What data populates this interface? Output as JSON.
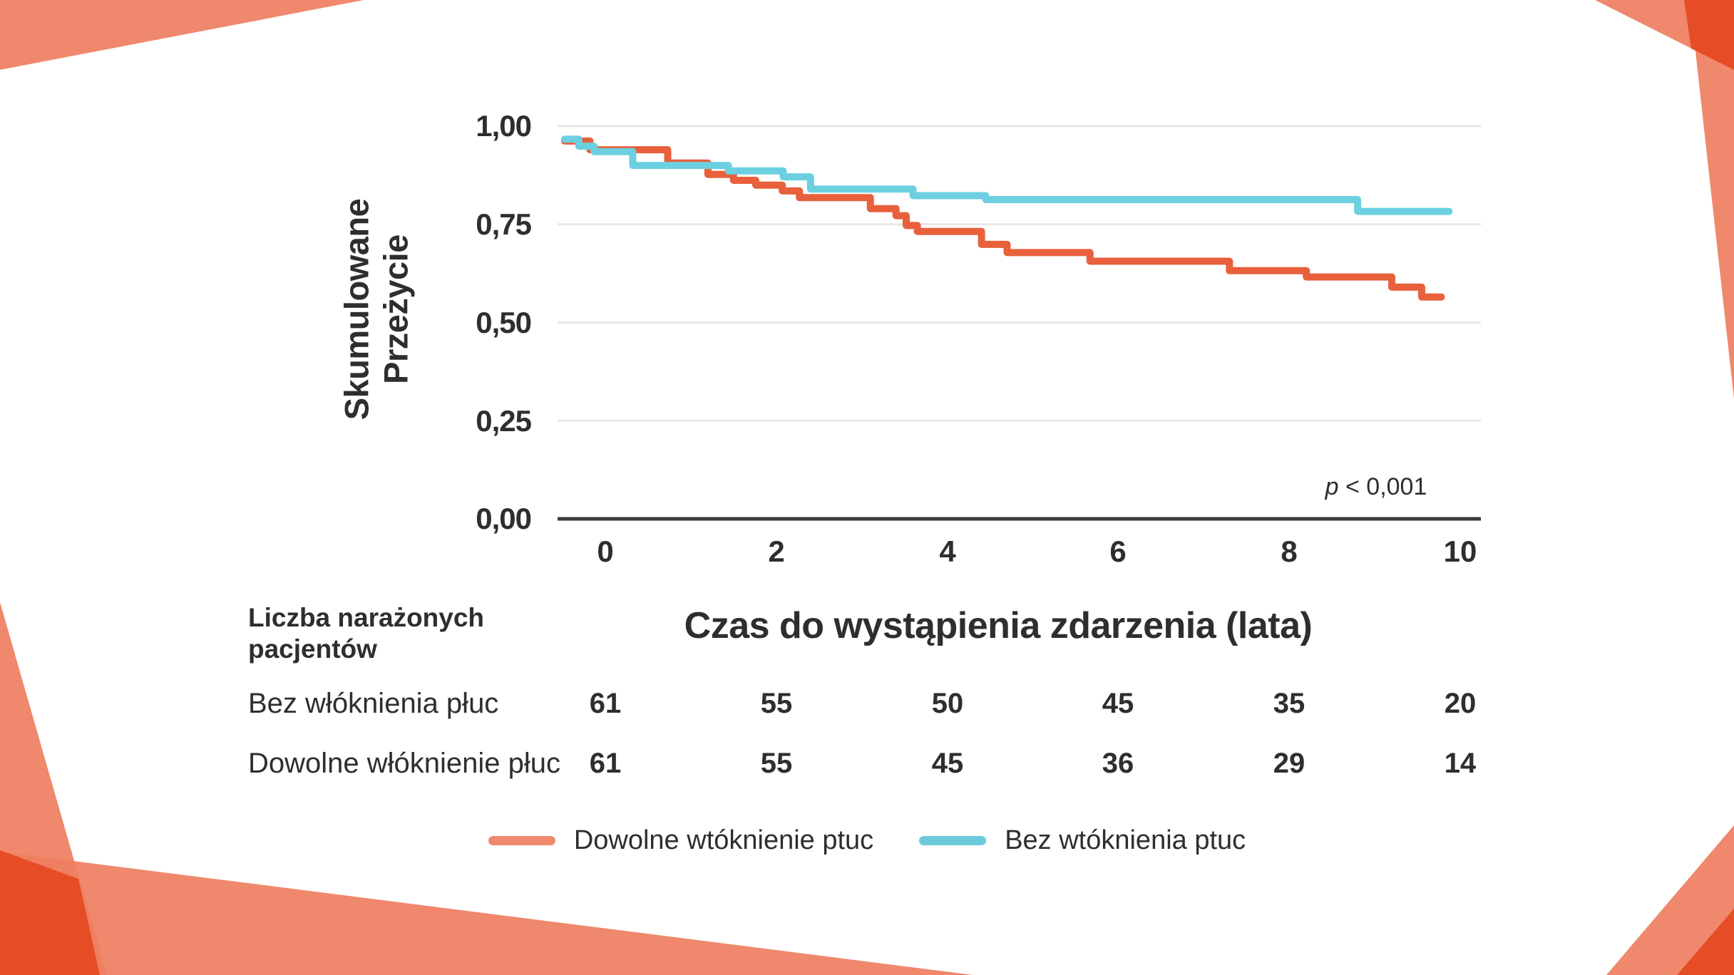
{
  "page": {
    "background": "#FFFFFF"
  },
  "chart_data": {
    "type": "line",
    "variant": "kaplan-meier-step",
    "title": "",
    "xlabel": "Czas do wystąpienia zdarzenia (lata)",
    "ylabel": "Skumulowane Przeżycie",
    "ylabel_lines": [
      "Skumulowane",
      "Przeżycie"
    ],
    "x_ticks": [
      "0",
      "2",
      "4",
      "6",
      "8",
      "10"
    ],
    "x_tick_values": [
      0,
      2,
      4,
      6,
      8,
      10
    ],
    "y_ticks": [
      "1,00",
      "0,75",
      "0,50",
      "0,25",
      "0,00"
    ],
    "y_tick_values": [
      1.0,
      0.75,
      0.5,
      0.25,
      0.0
    ],
    "xlim": [
      -0.56,
      10.25
    ],
    "ylim": [
      0,
      1
    ],
    "grid": "horizontal-only",
    "legend_position": "bottom",
    "annotation_p_italic": "p",
    "annotation_p_rest": "< 0,001",
    "series": [
      {
        "name": "Dowolne wtóknienie ptuc",
        "color": "#E8603C",
        "end_t": 9.78,
        "steps": [
          [
            -0.475,
            0.962
          ],
          [
            -0.18,
            0.94
          ],
          [
            0.73,
            0.906
          ],
          [
            1.2,
            0.877
          ],
          [
            1.5,
            0.862
          ],
          [
            1.76,
            0.85
          ],
          [
            2.07,
            0.835
          ],
          [
            2.27,
            0.818
          ],
          [
            3.1,
            0.79
          ],
          [
            3.4,
            0.772
          ],
          [
            3.52,
            0.747
          ],
          [
            3.65,
            0.732
          ],
          [
            4.4,
            0.699
          ],
          [
            4.7,
            0.678
          ],
          [
            5.67,
            0.656
          ],
          [
            7.3,
            0.632
          ],
          [
            8.2,
            0.616
          ],
          [
            9.2,
            0.59
          ],
          [
            9.55,
            0.565
          ]
        ]
      },
      {
        "name": "Bez wtóknienia ptuc",
        "color": "#6DD0E0",
        "end_t": 9.87,
        "steps": [
          [
            -0.475,
            0.967
          ],
          [
            -0.31,
            0.949
          ],
          [
            -0.13,
            0.935
          ],
          [
            0.32,
            0.9
          ],
          [
            1.44,
            0.886
          ],
          [
            2.08,
            0.871
          ],
          [
            2.4,
            0.84
          ],
          [
            3.6,
            0.823
          ],
          [
            4.45,
            0.813
          ],
          [
            8.8,
            0.783
          ]
        ]
      }
    ]
  },
  "risk_table": {
    "header": "Liczba narażonych pacjentów",
    "header_lines": [
      "Liczba narażonych",
      "pacjentów"
    ],
    "rows": [
      {
        "label": "Bez włóknienia płuc",
        "values": [
          "61",
          "55",
          "50",
          "45",
          "35",
          "20"
        ]
      },
      {
        "label": "Dowolne włóknienie płuc",
        "values": [
          "61",
          "55",
          "45",
          "36",
          "29",
          "14"
        ]
      }
    ]
  },
  "legend": {
    "items": [
      {
        "label": "Dowolne wtóknienie ptuc",
        "color": "#EF8A6E"
      },
      {
        "label": "Bez wtóknienia ptuc",
        "color": "#6CCBDB"
      }
    ]
  },
  "decorations": {
    "light_color": "#EE7E5F",
    "light_opacity": 0.92,
    "dark_color": "#E64D26"
  },
  "colors": {
    "text": "#2E2E31",
    "grid": "#EAE6E1",
    "axis": "#3A3A3A"
  }
}
